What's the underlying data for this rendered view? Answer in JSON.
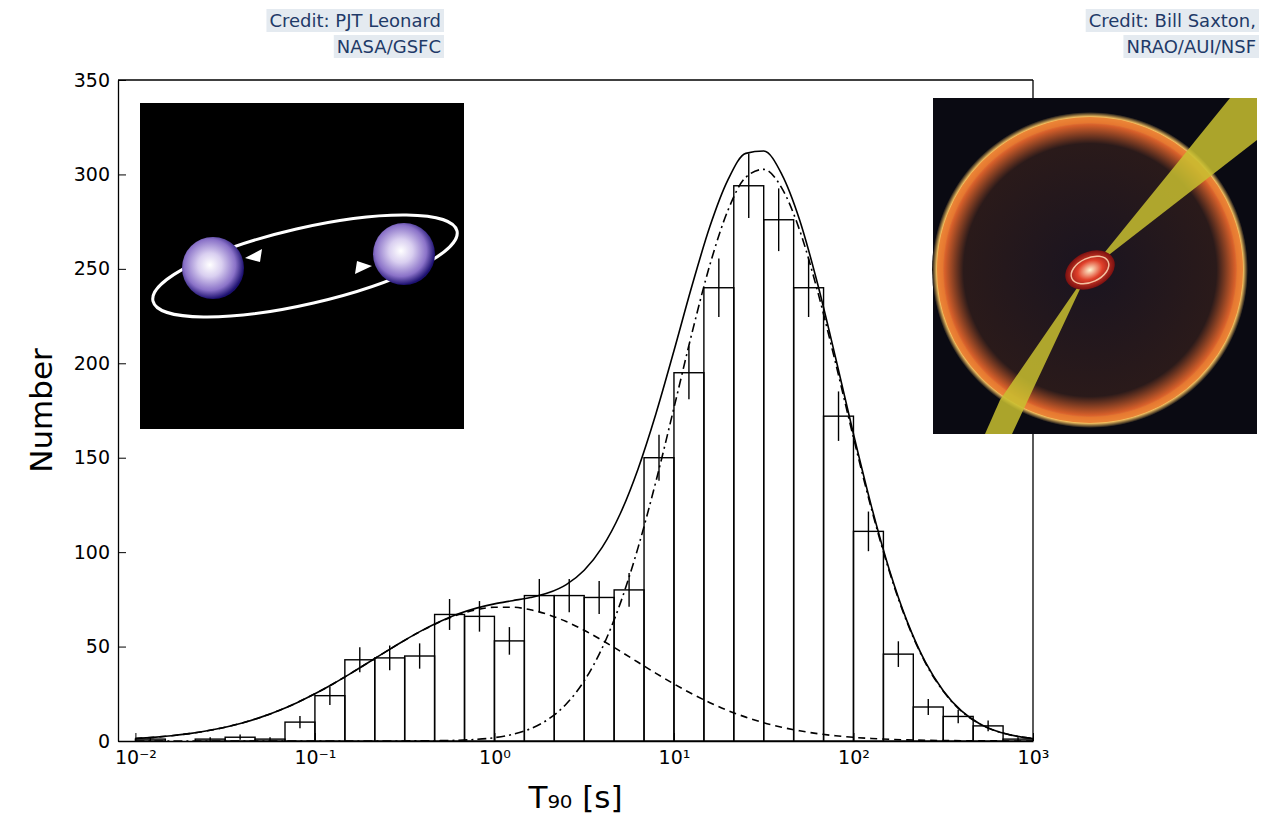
{
  "chart_data": {
    "type": "histogram",
    "x_label": "T₉₀ [s]",
    "y_label": "Number",
    "log": "x",
    "grid": false,
    "xlim": [
      0.008,
      1000
    ],
    "ylim": [
      0,
      350
    ],
    "xticks": [
      {
        "value": 0.01,
        "label": "10⁻²"
      },
      {
        "value": 0.1,
        "label": "10⁻¹"
      },
      {
        "value": 1,
        "label": "10⁰"
      },
      {
        "value": 10,
        "label": "10¹"
      },
      {
        "value": 100,
        "label": "10²"
      },
      {
        "value": 1000,
        "label": "10³"
      }
    ],
    "yticks": [
      0,
      50,
      100,
      150,
      200,
      250,
      300,
      350
    ],
    "bins": [
      0.01,
      0.01468,
      0.02154,
      0.03162,
      0.04642,
      0.06813,
      0.1,
      0.1468,
      0.2154,
      0.3162,
      0.4642,
      0.6813,
      1,
      1.468,
      2.154,
      3.162,
      4.642,
      6.813,
      10,
      14.68,
      21.54,
      31.62,
      46.42,
      68.13,
      100,
      146.8,
      215.4,
      316.2,
      464.2,
      681.3,
      1000
    ],
    "counts": [
      1,
      0,
      1,
      2,
      1,
      10,
      24,
      43,
      44,
      45,
      67,
      66,
      53,
      77,
      77,
      76,
      80,
      150,
      195,
      240,
      294,
      276,
      240,
      172,
      111,
      46,
      18,
      13,
      8,
      1
    ],
    "errors": [
      1,
      0,
      1,
      1.4,
      1,
      3.2,
      4.9,
      6.6,
      6.6,
      6.7,
      8.2,
      8.1,
      7.3,
      8.8,
      8.8,
      8.7,
      8.9,
      12.2,
      14,
      15.5,
      17.1,
      16.6,
      15.5,
      13.1,
      10.5,
      6.8,
      4.2,
      3.6,
      2.8,
      1
    ],
    "color": "#000000",
    "x": [
      0.01,
      0.01259,
      0.01585,
      0.01995,
      0.02512,
      0.03162,
      0.03981,
      0.05012,
      0.0631,
      0.07943,
      0.1,
      0.1259,
      0.1585,
      0.1995,
      0.2512,
      0.3162,
      0.3981,
      0.5012,
      0.631,
      0.7943,
      1,
      1.259,
      1.585,
      1.995,
      2.512,
      3.162,
      3.981,
      5.012,
      6.31,
      7.943,
      10,
      12.59,
      15.85,
      19.95,
      25.12,
      31.62,
      39.81,
      50.12,
      63.1,
      79.43,
      100,
      125.9,
      158.5,
      199.5,
      251.2,
      316.2,
      398.1,
      501.2,
      631,
      794.3,
      1000
    ],
    "series": [
      {
        "type": "line",
        "color": "#000000",
        "line_style": "solid",
        "values": [
          1.33,
          1.94,
          2.78,
          3.91,
          5.39,
          7.3,
          9.7,
          12.64,
          16.17,
          20.3,
          25,
          30.21,
          35.82,
          41.68,
          47.59,
          53.34,
          58.69,
          63.41,
          67.32,
          70.36,
          72.6,
          74.3,
          75.97,
          78.44,
          82.83,
          90.41,
          102.51,
          120.19,
          144.08,
          173.42,
          206.61,
          240.9,
          272.4,
          296.97,
          311.14,
          312.4,
          300.2,
          275.89,
          242.11,
          203.08,
          162.54,
          124.23,
          90.59,
          63.09,
          41.88,
          26.64,
          16.05,
          9.29,
          5.13,
          2.7,
          1.36
        ]
      },
      {
        "type": "line",
        "color": "#000000",
        "line_style": "dashed",
        "values": [
          1.33,
          1.94,
          2.78,
          3.91,
          5.39,
          7.3,
          9.7,
          12.64,
          16.17,
          20.3,
          25,
          30.21,
          35.82,
          41.68,
          47.59,
          53.31,
          58.61,
          63.23,
          66.92,
          69.5,
          70.83,
          70.83,
          69.5,
          66.92,
          63.23,
          58.61,
          53.31,
          47.59,
          41.68,
          35.82,
          30.21,
          25,
          20.3,
          16.17,
          12.64,
          9.7,
          7.3,
          5.39,
          3.91,
          2.78,
          1.94,
          1.33,
          0.89,
          0.59,
          0.38,
          0.24,
          0.15,
          0.09,
          0.06,
          0.03,
          0.02
        ]
      },
      {
        "type": "line",
        "color": "#000000",
        "line_style": "dashdot",
        "values": [
          0,
          0,
          0,
          0,
          0,
          0,
          0,
          0,
          0,
          0,
          0,
          0,
          0,
          0,
          0,
          0.03,
          0.08,
          0.18,
          0.4,
          0.86,
          1.77,
          3.47,
          6.47,
          11.52,
          19.6,
          31.8,
          49.2,
          72.6,
          102.4,
          137.6,
          176.4,
          215.9,
          252.1,
          280.8,
          298.5,
          302.7,
          292.9,
          270.5,
          238.2,
          200.3,
          160.6,
          122.9,
          89.7,
          62.5,
          41.5,
          26.4,
          15.9,
          9.2,
          5.07,
          2.67,
          1.34
        ]
      }
    ],
    "annotations": [
      {
        "lines": [
          "Credit: PJT Leonard",
          "NASA/GSFC"
        ]
      },
      {
        "lines": [
          "Credit: Bill Saxton,",
          "NRAO/AUI/NSF"
        ]
      }
    ]
  }
}
